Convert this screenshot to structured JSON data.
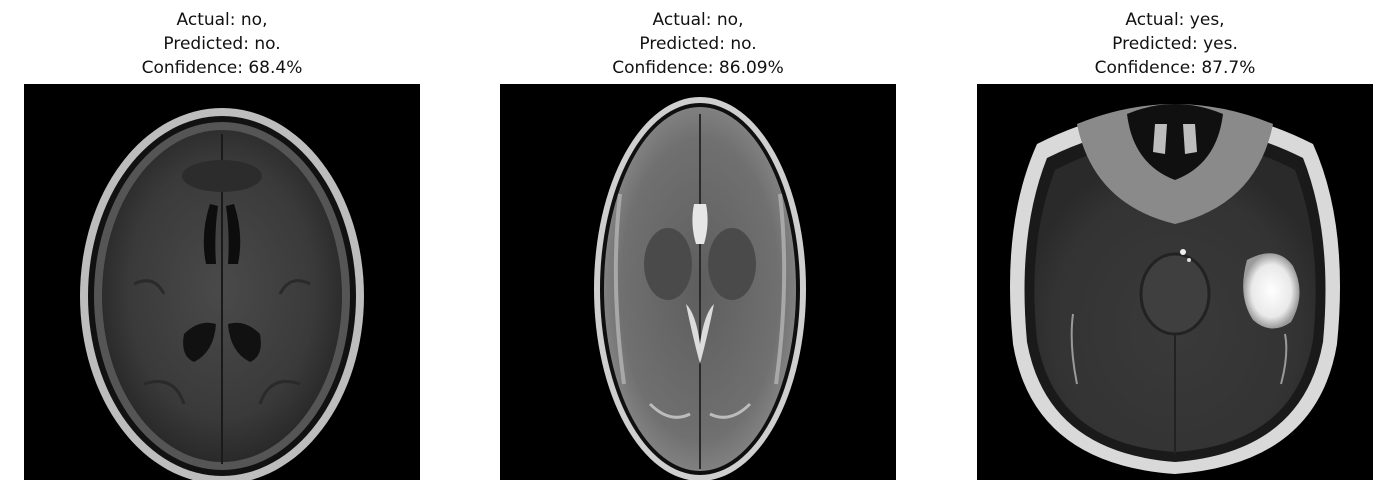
{
  "panels": [
    {
      "title_lines": [
        "Actual: no,",
        "Predicted: no.",
        "Confidence: 68.4%"
      ]
    },
    {
      "title_lines": [
        "Actual: no,",
        "Predicted: no.",
        "Confidence: 86.09%"
      ]
    },
    {
      "title_lines": [
        "Actual: yes,",
        "Predicted: yes.",
        "Confidence: 87.7%"
      ]
    }
  ]
}
